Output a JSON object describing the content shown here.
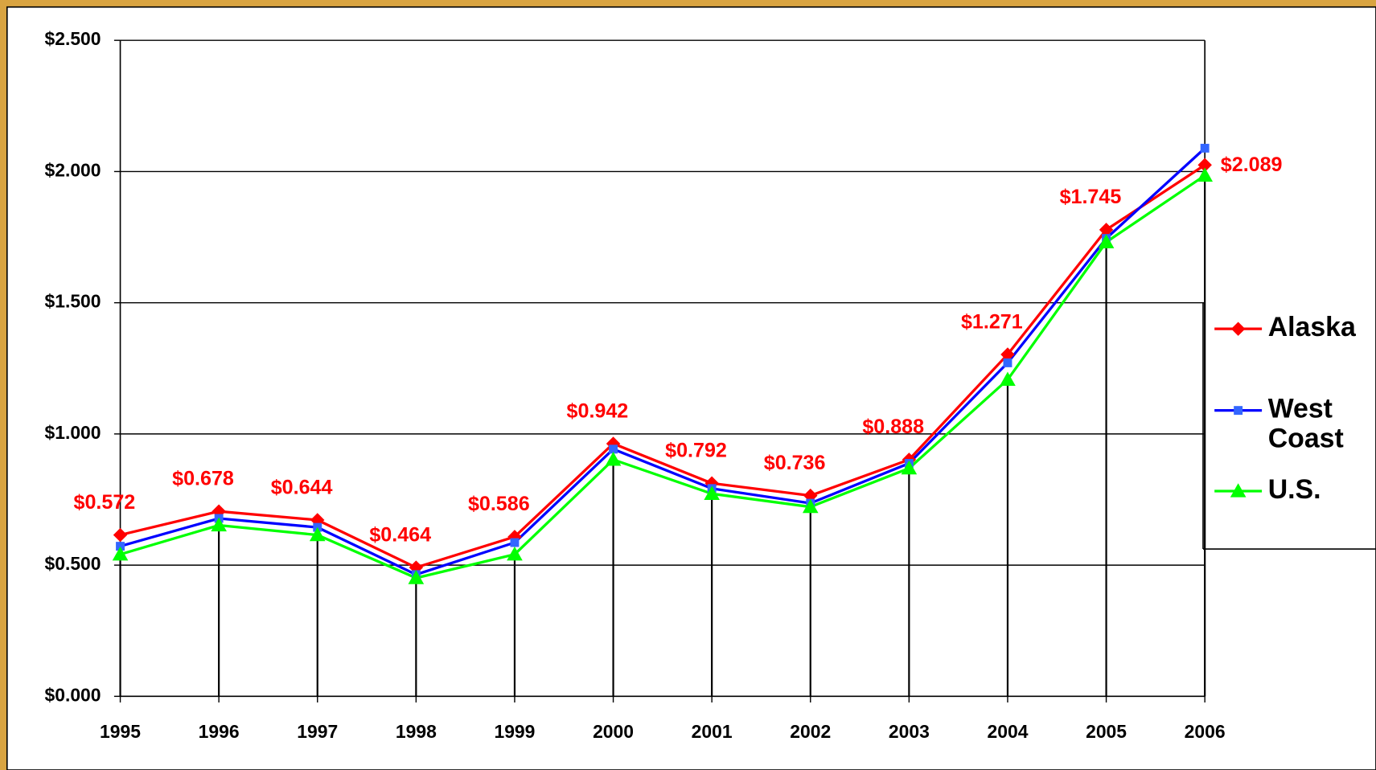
{
  "chart_data": {
    "type": "line",
    "categories": [
      "1995",
      "1996",
      "1997",
      "1998",
      "1999",
      "2000",
      "2001",
      "2002",
      "2003",
      "2004",
      "2005",
      "2006"
    ],
    "series": [
      {
        "name": "Alaska",
        "color": "#ff0000",
        "marker": "diamond",
        "values": [
          0.615,
          0.705,
          0.672,
          0.491,
          0.608,
          0.963,
          0.812,
          0.765,
          0.902,
          1.303,
          1.778,
          2.025
        ]
      },
      {
        "name": "West Coast",
        "color": "#0000ff",
        "marker": "square",
        "values": [
          0.572,
          0.678,
          0.644,
          0.464,
          0.586,
          0.942,
          0.792,
          0.736,
          0.888,
          1.271,
          1.745,
          2.089
        ],
        "value_labels": [
          "$0.572",
          "$0.678",
          "$0.644",
          "$0.464",
          "$0.586",
          "$0.942",
          "$0.792",
          "$0.736",
          "$0.888",
          "$1.271",
          "$1.745",
          "$2.089"
        ],
        "value_label_color": "#ff0000"
      },
      {
        "name": "U.S.",
        "color": "#00ff00",
        "marker": "triangle",
        "values": [
          0.541,
          0.652,
          0.615,
          0.451,
          0.541,
          0.902,
          0.772,
          0.722,
          0.869,
          1.207,
          1.731,
          1.985
        ]
      }
    ],
    "ylim": [
      0,
      2.5
    ],
    "yticks": [
      {
        "value": 0,
        "label": "$0.000"
      },
      {
        "value": 0.5,
        "label": "$0.500"
      },
      {
        "value": 1,
        "label": "$1.000"
      },
      {
        "value": 1.5,
        "label": "$1.500"
      },
      {
        "value": 2,
        "label": "$2.000"
      },
      {
        "value": 2.5,
        "label": "$2.500"
      }
    ],
    "grid": true,
    "drop_lines": true,
    "legend": "right"
  }
}
